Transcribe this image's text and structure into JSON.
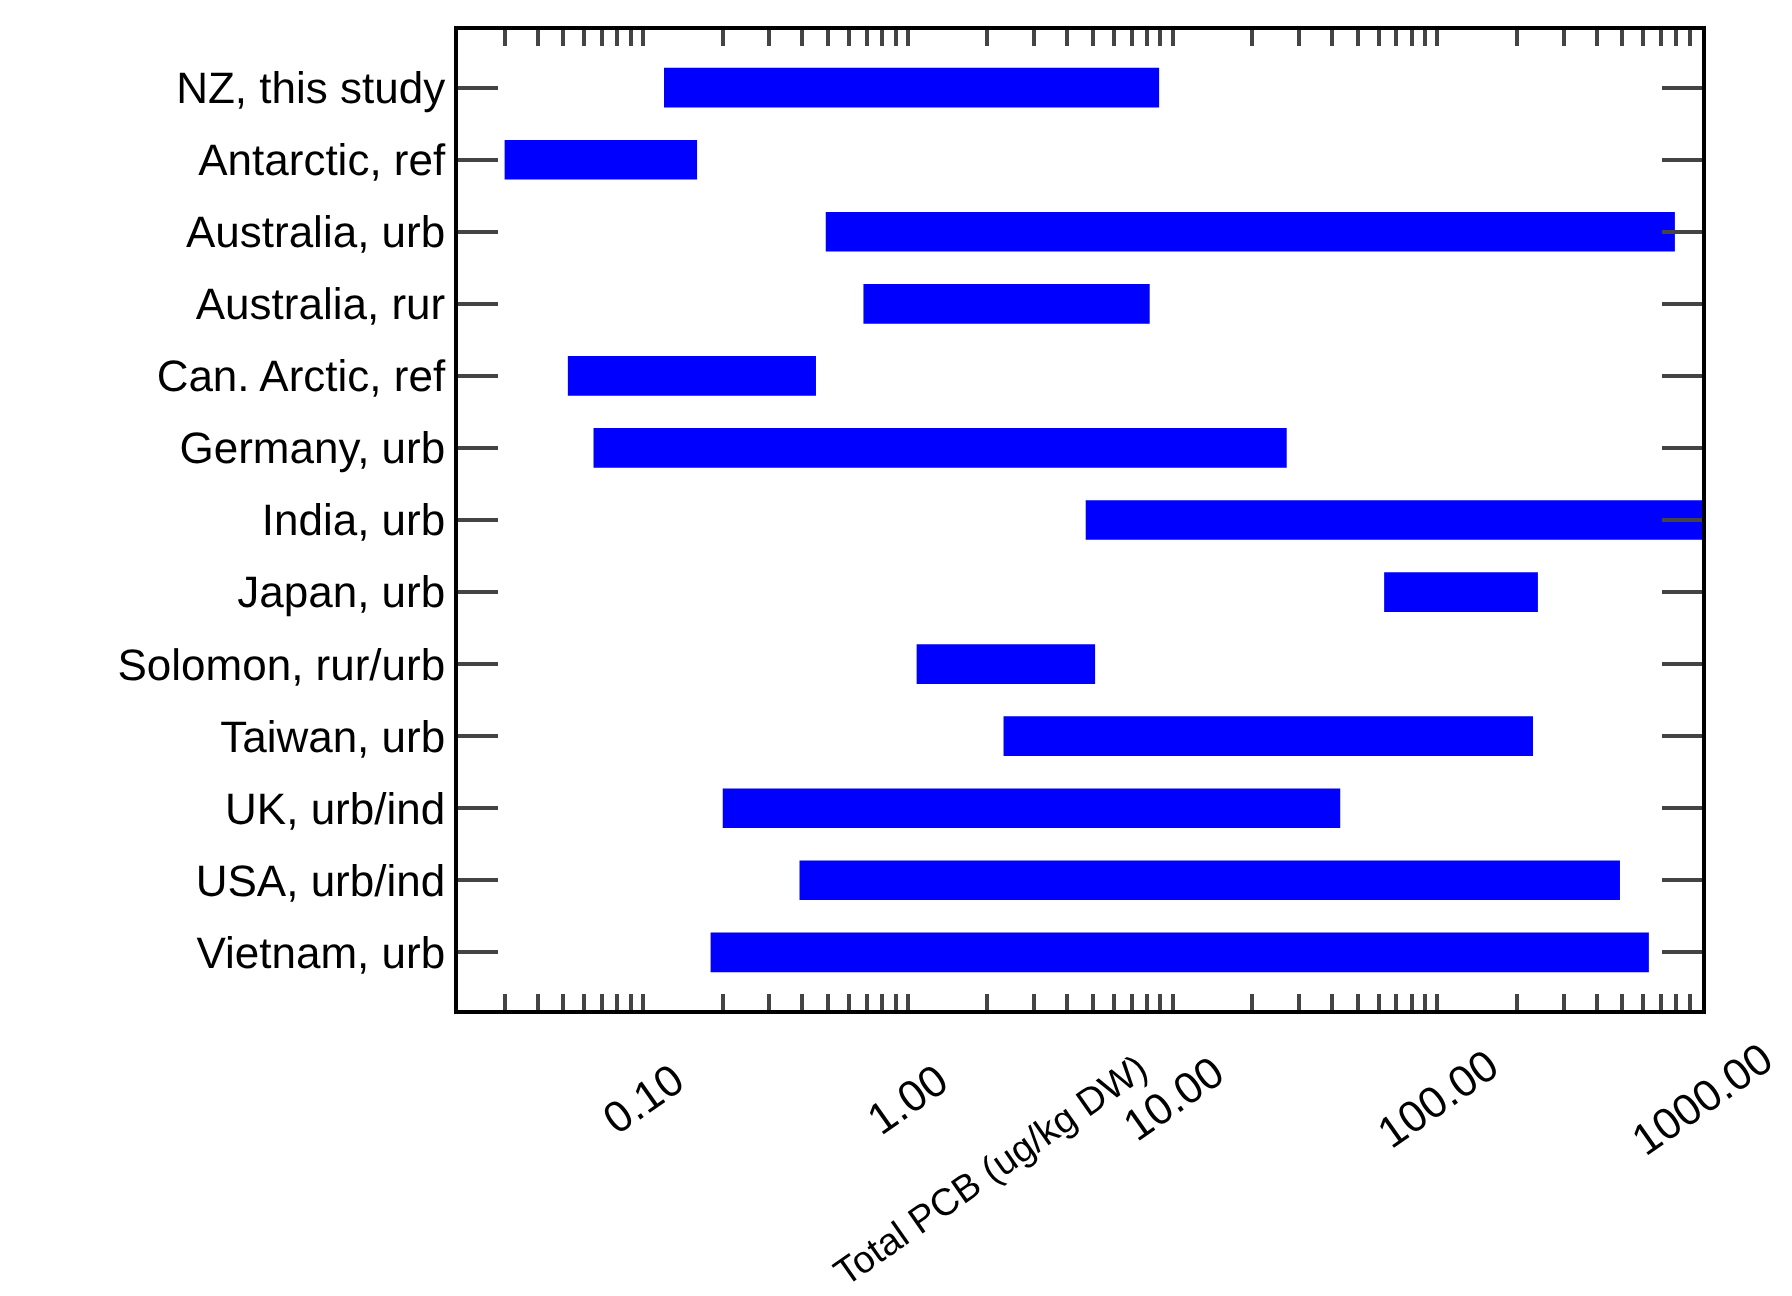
{
  "chart_data": {
    "type": "bar",
    "orientation": "horizontal",
    "xlabel": "Total PCB (ug/kg DW)",
    "categories": [
      "NZ, this study",
      "Antarctic, ref",
      "Australia, urb",
      "Australia, rur",
      "Can. Arctic, ref",
      "Germany, urb",
      "India, urb",
      "Japan, urb",
      "Solomon, rur/urb",
      "Taiwan, urb",
      "UK, urb/ind",
      "USA, urb/ind",
      "Vietnam, urb"
    ],
    "base": [
      0.12,
      0.03,
      0.49,
      0.68,
      0.052,
      0.065,
      4.7,
      63,
      1.08,
      2.3,
      0.2,
      0.39,
      0.18
    ],
    "values": [
      8.78,
      0.13,
      789.51,
      7.52,
      0.398,
      26.935,
      995.3,
      177,
      4.02,
      227.7,
      42.8,
      489.61,
      629.82
    ],
    "color": "#0000ff",
    "log": "x",
    "xlim": [
      0.02,
      1000
    ],
    "xticks": [
      {
        "value": 0.03,
        "label": null
      },
      {
        "value": 0.04,
        "label": null
      },
      {
        "value": 0.05,
        "label": null
      },
      {
        "value": 0.06,
        "label": null
      },
      {
        "value": 0.07,
        "label": null
      },
      {
        "value": 0.08,
        "label": null
      },
      {
        "value": 0.09,
        "label": null
      },
      {
        "value": 0.1,
        "label": "0.10"
      },
      {
        "value": 0.2,
        "label": null
      },
      {
        "value": 0.3,
        "label": null
      },
      {
        "value": 0.4,
        "label": null
      },
      {
        "value": 0.5,
        "label": null
      },
      {
        "value": 0.6,
        "label": null
      },
      {
        "value": 0.7,
        "label": null
      },
      {
        "value": 0.8,
        "label": null
      },
      {
        "value": 0.9,
        "label": null
      },
      {
        "value": 1,
        "label": "1.00"
      },
      {
        "value": 2,
        "label": null
      },
      {
        "value": 3,
        "label": null
      },
      {
        "value": 4,
        "label": null
      },
      {
        "value": 5,
        "label": null
      },
      {
        "value": 6,
        "label": null
      },
      {
        "value": 7,
        "label": null
      },
      {
        "value": 8,
        "label": null
      },
      {
        "value": 9,
        "label": null
      },
      {
        "value": 10,
        "label": "10.00"
      },
      {
        "value": 20,
        "label": null
      },
      {
        "value": 30,
        "label": null
      },
      {
        "value": 40,
        "label": null
      },
      {
        "value": 50,
        "label": null
      },
      {
        "value": 60,
        "label": null
      },
      {
        "value": 70,
        "label": null
      },
      {
        "value": 80,
        "label": null
      },
      {
        "value": 90,
        "label": null
      },
      {
        "value": 100,
        "label": "100.00"
      },
      {
        "value": 200,
        "label": null
      },
      {
        "value": 300,
        "label": null
      },
      {
        "value": 400,
        "label": null
      },
      {
        "value": 500,
        "label": null
      },
      {
        "value": 600,
        "label": null
      },
      {
        "value": 700,
        "label": null
      },
      {
        "value": 800,
        "label": null
      },
      {
        "value": 900,
        "label": null
      },
      {
        "value": 1000,
        "label": "1000.00"
      }
    ],
    "legend": false
  }
}
